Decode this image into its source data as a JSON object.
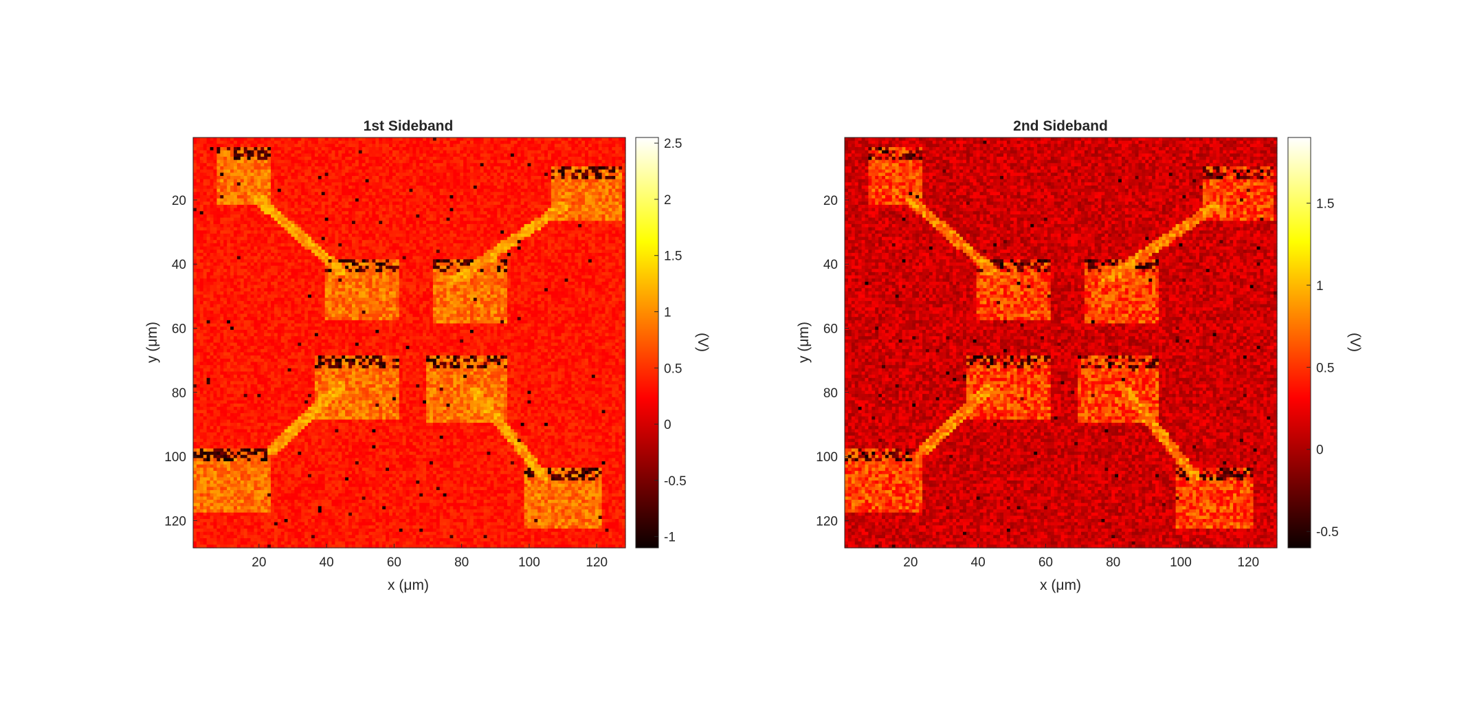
{
  "chart_data": [
    {
      "type": "heatmap",
      "title": "1st Sideband",
      "xlabel": "x (μm)",
      "ylabel": "y (μm)",
      "colorbar_label": "(V)",
      "colormap": "hot",
      "x_range": [
        1,
        128
      ],
      "y_range": [
        1,
        128
      ],
      "y_reversed": true,
      "xticks": [
        20,
        40,
        60,
        80,
        100,
        120
      ],
      "yticks": [
        20,
        40,
        60,
        80,
        100,
        120
      ],
      "clim": [
        -1.1,
        2.55
      ],
      "colorbar_ticks": [
        -1,
        -0.5,
        0,
        0.5,
        1,
        1.5,
        2,
        2.5
      ],
      "background_level": 0.35,
      "pads_level": 0.85,
      "legs_level": 1.1,
      "grid": false
    },
    {
      "type": "heatmap",
      "title": "2nd Sideband",
      "xlabel": "x (μm)",
      "ylabel": "y (μm)",
      "colorbar_label": "(V)",
      "colormap": "hot",
      "x_range": [
        1,
        128
      ],
      "y_range": [
        1,
        128
      ],
      "y_reversed": true,
      "xticks": [
        20,
        40,
        60,
        80,
        100,
        120
      ],
      "yticks": [
        20,
        40,
        60,
        80,
        100,
        120
      ],
      "clim": [
        -0.6,
        1.9
      ],
      "colorbar_ticks": [
        -0.5,
        0,
        0.5,
        1,
        1.5
      ],
      "background_level": 0.1,
      "pads_level": 0.55,
      "legs_level": 0.8,
      "grid": false
    }
  ]
}
